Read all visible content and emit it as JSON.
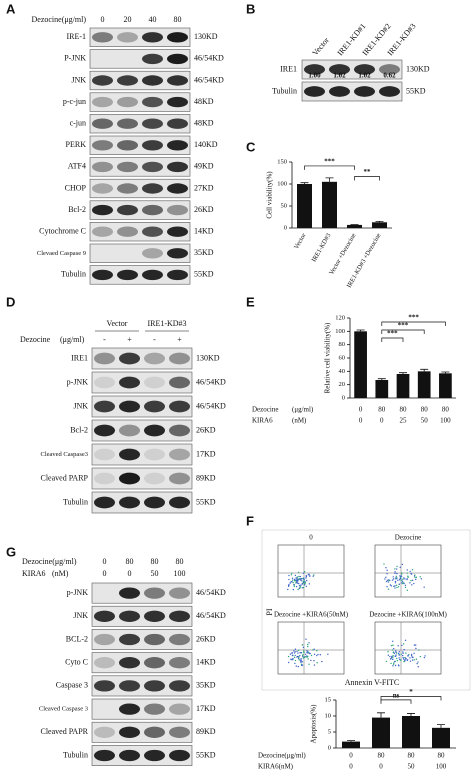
{
  "panels": {
    "A": {
      "label": "A",
      "treatment": "Dezocine(μg/ml)",
      "lanes": [
        0,
        20,
        40,
        80
      ],
      "rows": [
        {
          "name": "IRE-1",
          "size": "130KD"
        },
        {
          "name": "P-JNK",
          "size": "46/54KD"
        },
        {
          "name": "JNK",
          "size": "46/54KD"
        },
        {
          "name": "p-c-jun",
          "size": "48KD"
        },
        {
          "name": "c-jun",
          "size": "48KD"
        },
        {
          "name": "PERK",
          "size": "140KD"
        },
        {
          "name": "ATF4",
          "size": "49KD"
        },
        {
          "name": "CHOP",
          "size": "27KD"
        },
        {
          "name": "Bcl-2",
          "size": "26KD"
        },
        {
          "name": "Cytochrome C",
          "size": "14KD"
        },
        {
          "name": "Clevaed Caspase 9",
          "size": "35KD"
        },
        {
          "name": "Tubulin",
          "size": "55KD"
        }
      ]
    },
    "B": {
      "label": "B",
      "lanes": [
        "Vector",
        "IRE1-KD#1",
        "IRE1-KD#2",
        "IRE1-KD#3"
      ],
      "ratios": [
        "1.00",
        "1.02",
        "1.02",
        "0.62"
      ],
      "rows": [
        {
          "name": "IRE1",
          "size": "130KD"
        },
        {
          "name": "Tubulin",
          "size": "55KD"
        }
      ]
    },
    "D": {
      "label": "D",
      "groups": [
        "Vector",
        "IRE1-KD#3"
      ],
      "treatment": "Dezocine",
      "unit": "(μg/ml)",
      "lanes": [
        "-",
        "+",
        "-",
        "+"
      ],
      "rows": [
        {
          "name": "IRE1",
          "size": "130KD"
        },
        {
          "name": "p-JNK",
          "size": "46/54KD"
        },
        {
          "name": "JNK",
          "size": "46/54KD"
        },
        {
          "name": "Bcl-2",
          "size": "26KD"
        },
        {
          "name": "Cleaved Caspase3",
          "size": "17KD"
        },
        {
          "name": "Cleaved PARP",
          "size": "89KD"
        },
        {
          "name": "Tubulin",
          "size": "55KD"
        }
      ]
    },
    "F": {
      "label": "F",
      "plots": [
        "0",
        "Dezocine",
        "Dezocine +KIRA6(50nM)",
        "Dezocine +KIRA6(100nM)"
      ],
      "x_label": "Annexin V-FITC",
      "y_label": "PI"
    },
    "G": {
      "label": "G",
      "treatments": [
        {
          "name": "Dezocine(μg/ml)",
          "lanes": [
            0,
            80,
            80,
            80
          ]
        },
        {
          "name": "KIRA6",
          "unit": "(nM)",
          "lanes": [
            0,
            0,
            50,
            100
          ]
        }
      ],
      "rows": [
        {
          "name": "p-JNK",
          "size": "46/54KD"
        },
        {
          "name": "JNK",
          "size": "46/54KD"
        },
        {
          "name": "BCL-2",
          "size": "26KD"
        },
        {
          "name": "Cyto C",
          "size": "14KD"
        },
        {
          "name": "Caspase 3",
          "size": "35KD"
        },
        {
          "name": "Cleaved Caspase 3",
          "size": "17KD"
        },
        {
          "name": "Cleaved PAPR",
          "size": "89KD"
        },
        {
          "name": "Tubulin",
          "size": "55KD"
        }
      ]
    }
  },
  "chart_data": [
    {
      "type": "bar",
      "panel": "C",
      "y_label": "Cell viability(%)",
      "categories": [
        "Vector",
        "IRE1-KD#3",
        "Vector +Dezocine",
        "IRE1-KD#3 +Dezocine"
      ],
      "values": [
        100,
        105,
        7,
        13
      ],
      "errors": [
        3,
        9,
        1,
        2
      ],
      "color": "#111111",
      "ylim": [
        0,
        150
      ],
      "yticks": [
        0,
        50,
        100,
        150
      ],
      "annotations": [
        "***",
        "**"
      ]
    },
    {
      "type": "bar",
      "panel": "E",
      "y_label": "Relative cell viability(%)",
      "categories": [
        null,
        null,
        null,
        null,
        null
      ],
      "values": [
        100,
        27,
        36,
        40,
        37
      ],
      "errors": [
        2,
        2,
        2,
        3,
        2
      ],
      "color": "#111111",
      "ylim": [
        0,
        120
      ],
      "yticks": [
        0,
        20,
        40,
        60,
        80,
        100,
        120
      ],
      "annotations": [
        "***",
        "***",
        "***"
      ],
      "conditions": [
        {
          "name": "Dezocine",
          "unit": "(μg/ml)",
          "values": [
            0,
            80,
            80,
            80,
            80
          ]
        },
        {
          "name": "KIRA6",
          "unit": "(nM)",
          "values": [
            0,
            0,
            25,
            50,
            100
          ]
        }
      ]
    },
    {
      "type": "bar",
      "panel": "F",
      "y_label": "Apoptosis(%)",
      "categories": [
        null,
        null,
        null,
        null
      ],
      "values": [
        2,
        9.5,
        10,
        6.3
      ],
      "errors": [
        0.3,
        1.5,
        0.8,
        1
      ],
      "color": "#111111",
      "ylim": [
        0,
        15
      ],
      "yticks": [
        0,
        5,
        10,
        15
      ],
      "annotations": [
        "ns",
        "*"
      ],
      "conditions": [
        {
          "name": "Dezocine(μg/ml)",
          "values": [
            0,
            80,
            80,
            80
          ]
        },
        {
          "name": "KIRA6(nM)",
          "values": [
            0,
            0,
            50,
            100
          ]
        }
      ]
    }
  ]
}
